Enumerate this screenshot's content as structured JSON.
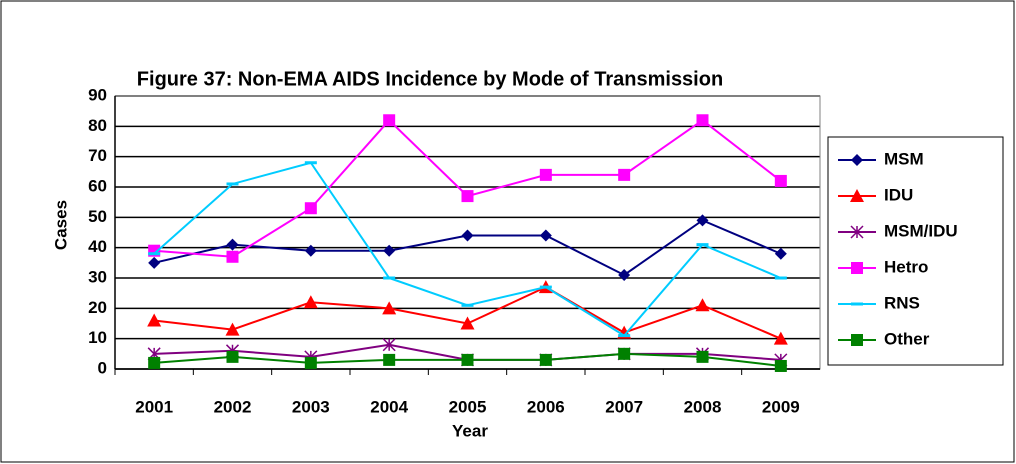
{
  "chart_data": {
    "type": "line",
    "title": "Figure 37: Non-EMA AIDS Incidence by Mode of Transmission",
    "xlabel": "Year",
    "ylabel": "Cases",
    "categories": [
      "2001",
      "2002",
      "2003",
      "2004",
      "2005",
      "2006",
      "2007",
      "2008",
      "2009"
    ],
    "series": [
      {
        "name": "MSM",
        "color": "#000080",
        "marker": "diamond",
        "values": [
          35,
          41,
          39,
          39,
          44,
          44,
          31,
          49,
          38
        ]
      },
      {
        "name": "IDU",
        "color": "#ff0000",
        "marker": "triangle",
        "values": [
          16,
          13,
          22,
          20,
          15,
          27,
          12,
          21,
          10
        ]
      },
      {
        "name": "MSM/IDU",
        "color": "#800080",
        "marker": "star",
        "values": [
          5,
          6,
          4,
          8,
          3,
          3,
          5,
          5,
          3
        ]
      },
      {
        "name": "Hetro",
        "color": "#ff00ff",
        "marker": "square",
        "values": [
          39,
          37,
          53,
          82,
          57,
          64,
          64,
          82,
          62
        ]
      },
      {
        "name": "RNS",
        "color": "#00ccff",
        "marker": "dash",
        "values": [
          38,
          61,
          68,
          30,
          21,
          27,
          11,
          41,
          30
        ]
      },
      {
        "name": "Other",
        "color": "#008000",
        "marker": "square",
        "values": [
          2,
          4,
          2,
          3,
          3,
          3,
          5,
          4,
          1
        ]
      }
    ],
    "ylim": [
      0,
      90
    ],
    "yticks": [
      0,
      10,
      20,
      30,
      40,
      50,
      60,
      70,
      80,
      90
    ],
    "grid": true,
    "legend": "right"
  }
}
